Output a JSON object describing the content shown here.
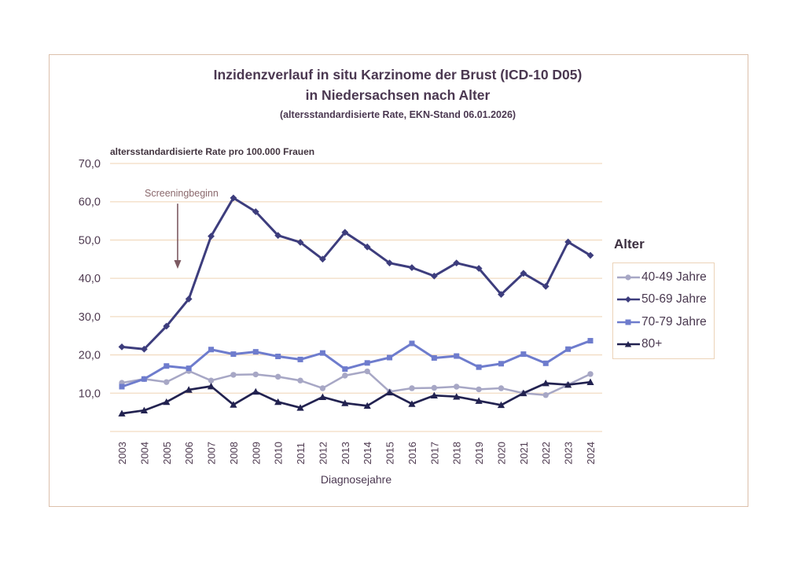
{
  "title": {
    "line1": "Inzidenzverlauf in situ Karzinome der Brust (ICD-10 D05)",
    "line2": "in Niedersachsen nach Alter",
    "line3": "(altersstandardisierte Rate, EKN-Stand 06.01.2026)"
  },
  "chart_data": {
    "type": "line",
    "title": "Inzidenzverlauf in situ Karzinome der Brust (ICD-10 D05) in Niedersachsen nach Alter",
    "subtitle": "(altersstandardisierte Rate, EKN-Stand 06.01.2026)",
    "axis_note": "altersstandardisierte Rate pro 100.000 Frauen",
    "xlabel": "Diagnosejahre",
    "legend_title": "Alter",
    "legend_position": "right",
    "grid": true,
    "grid_color": "#f2dcc2",
    "ylim": [
      0,
      70
    ],
    "ytick_step": 10,
    "ytick_labels": [
      "10,0",
      "20,0",
      "30,0",
      "40,0",
      "50,0",
      "60,0",
      "70,0"
    ],
    "categories": [
      2003,
      2004,
      2005,
      2006,
      2007,
      2008,
      2009,
      2010,
      2011,
      2012,
      2013,
      2014,
      2015,
      2016,
      2017,
      2018,
      2019,
      2020,
      2021,
      2022,
      2023,
      2024
    ],
    "series": [
      {
        "name": "40-49 Jahre",
        "marker": "circle",
        "color": "#a7a7c5",
        "values": [
          12.7,
          13.7,
          12.9,
          15.8,
          13.3,
          14.8,
          14.9,
          14.3,
          13.3,
          11.3,
          14.6,
          15.7,
          10.4,
          11.3,
          11.4,
          11.7,
          11.0,
          11.3,
          10.0,
          9.5,
          12.2,
          15.0
        ]
      },
      {
        "name": "50-69 Jahre",
        "marker": "diamond",
        "color": "#3d3d7d",
        "values": [
          22.1,
          21.5,
          27.5,
          34.6,
          51.0,
          61.0,
          57.4,
          51.2,
          49.4,
          45.0,
          52.0,
          48.2,
          44.0,
          42.8,
          40.6,
          44.0,
          42.6,
          35.8,
          41.3,
          37.9,
          49.5,
          46.0
        ]
      },
      {
        "name": "70-79 Jahre",
        "marker": "square",
        "color": "#6e7ccd",
        "values": [
          11.7,
          13.7,
          17.1,
          16.5,
          21.4,
          20.2,
          20.8,
          19.6,
          18.8,
          20.5,
          16.3,
          17.9,
          19.3,
          23.0,
          19.2,
          19.7,
          16.8,
          17.7,
          20.2,
          17.8,
          21.5,
          23.7
        ]
      },
      {
        "name": "80+",
        "marker": "triangle",
        "color": "#222250",
        "values": [
          4.7,
          5.5,
          7.7,
          10.9,
          11.8,
          7.0,
          10.4,
          7.7,
          6.2,
          9.0,
          7.4,
          6.7,
          10.2,
          7.2,
          9.4,
          9.1,
          8.0,
          6.9,
          10.0,
          12.6,
          12.2,
          12.9
        ]
      }
    ],
    "annotation": {
      "text": "Screeningbeginn",
      "color": "#7d5a62",
      "text_color": "#8a686c",
      "arrow_year": 2005.5,
      "arrow_from_rate": 59.5,
      "arrow_to_rate": 42.5
    }
  }
}
